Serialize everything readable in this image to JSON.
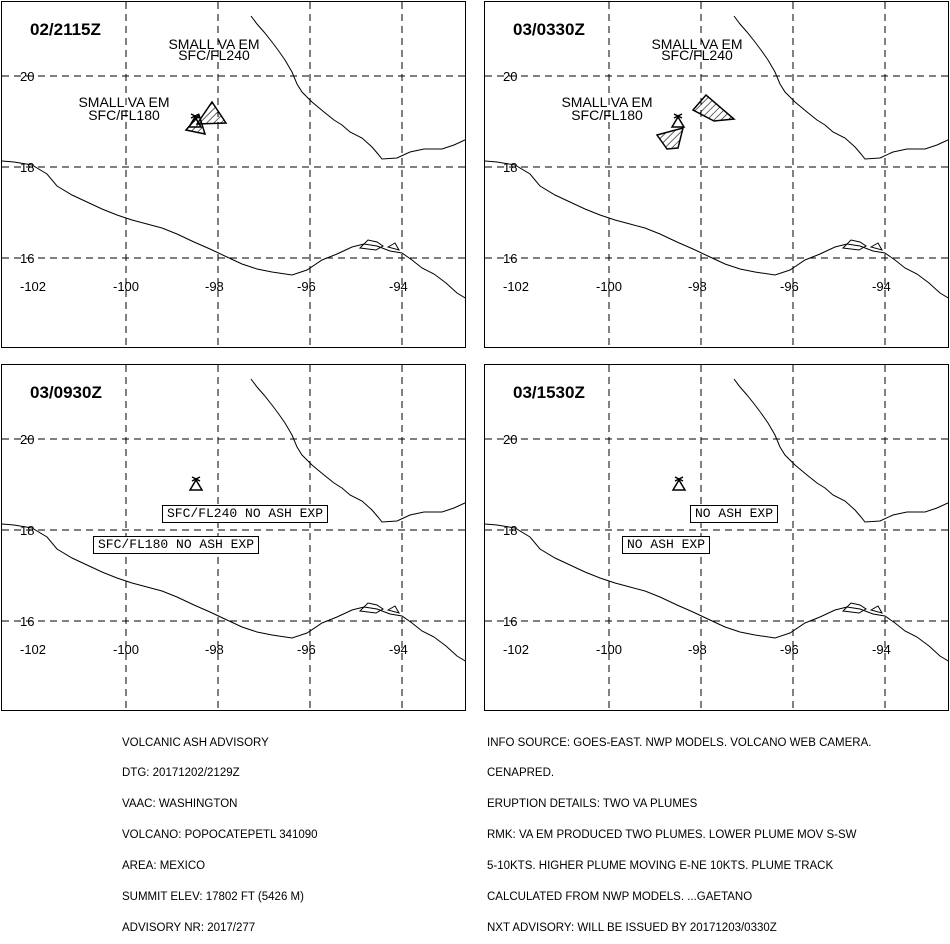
{
  "panels": [
    {
      "time": "02/2115Z",
      "labels": [
        {
          "lines": [
            "SMALL VA EM",
            "SFC/FL240"
          ]
        },
        {
          "lines": [
            "SMALL VA EM",
            "SFC/FL180"
          ]
        }
      ],
      "boxes": []
    },
    {
      "time": "03/0330Z",
      "labels": [
        {
          "lines": [
            "SMALL VA EM",
            "SFC/FL240"
          ]
        },
        {
          "lines": [
            "SMALL VA EM",
            "SFC/FL180"
          ]
        }
      ],
      "boxes": []
    },
    {
      "time": "03/0930Z",
      "labels": [],
      "boxes": [
        "SFC/FL240 NO ASH EXP",
        "SFC/FL180 NO ASH EXP"
      ]
    },
    {
      "time": "03/1530Z",
      "labels": [],
      "boxes": [
        "NO ASH EXP",
        "NO ASH EXP"
      ]
    }
  ],
  "map": {
    "lat_ticks": [
      "20",
      "18",
      "16"
    ],
    "lon_ticks": [
      "-102",
      "-100",
      "-98",
      "-96",
      "-94"
    ]
  },
  "footer_left": [
    "VOLCANIC ASH ADVISORY",
    "DTG: 20171202/2129Z",
    "VAAC: WASHINGTON",
    "VOLCANO: POPOCATEPETL 341090",
    "AREA: MEXICO",
    "SUMMIT ELEV: 17802 FT (5426 M)",
    "ADVISORY NR: 2017/277"
  ],
  "footer_right": [
    "INFO SOURCE: GOES-EAST. NWP MODELS. VOLCANO WEB CAMERA.",
    "CENAPRED.",
    "ERUPTION DETAILS: TWO VA PLUMES",
    "RMK: VA EM PRODUCED TWO PLUMES. LOWER PLUME MOV S-SW",
    "5-10KTS. HIGHER PLUME MOVING E-NE 10KTS. PLUME TRACK",
    "CALCULATED FROM NWP MODELS. ...GAETANO",
    "NXT ADVISORY: WILL BE ISSUED BY 20171203/0330Z"
  ]
}
